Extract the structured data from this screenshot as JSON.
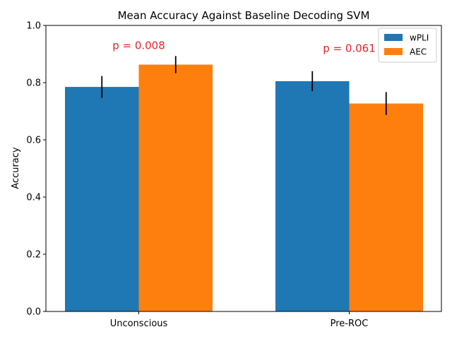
{
  "chart_data": {
    "type": "bar",
    "title": "Mean Accuracy Against Baseline Decoding SVM",
    "xlabel": "",
    "ylabel": "Accuracy",
    "ylim": [
      0,
      1
    ],
    "yticks": [
      "0.0",
      "0.2",
      "0.4",
      "0.6",
      "0.8",
      "1.0"
    ],
    "categories": [
      "Unconscious",
      "Pre-ROC"
    ],
    "series": [
      {
        "name": "wPLI",
        "color": "#1f77b4",
        "values": [
          0.785,
          0.805
        ],
        "errors": [
          0.038,
          0.035
        ]
      },
      {
        "name": "AEC",
        "color": "#ff7f0e",
        "values": [
          0.863,
          0.727
        ],
        "errors": [
          0.03,
          0.04
        ]
      }
    ],
    "annotations": [
      {
        "text": "p = 0.008",
        "category": 0,
        "y": 0.93
      },
      {
        "text": "p = 0.061",
        "category": 1,
        "y": 0.92
      }
    ],
    "legend": "top-right",
    "grid": false
  }
}
